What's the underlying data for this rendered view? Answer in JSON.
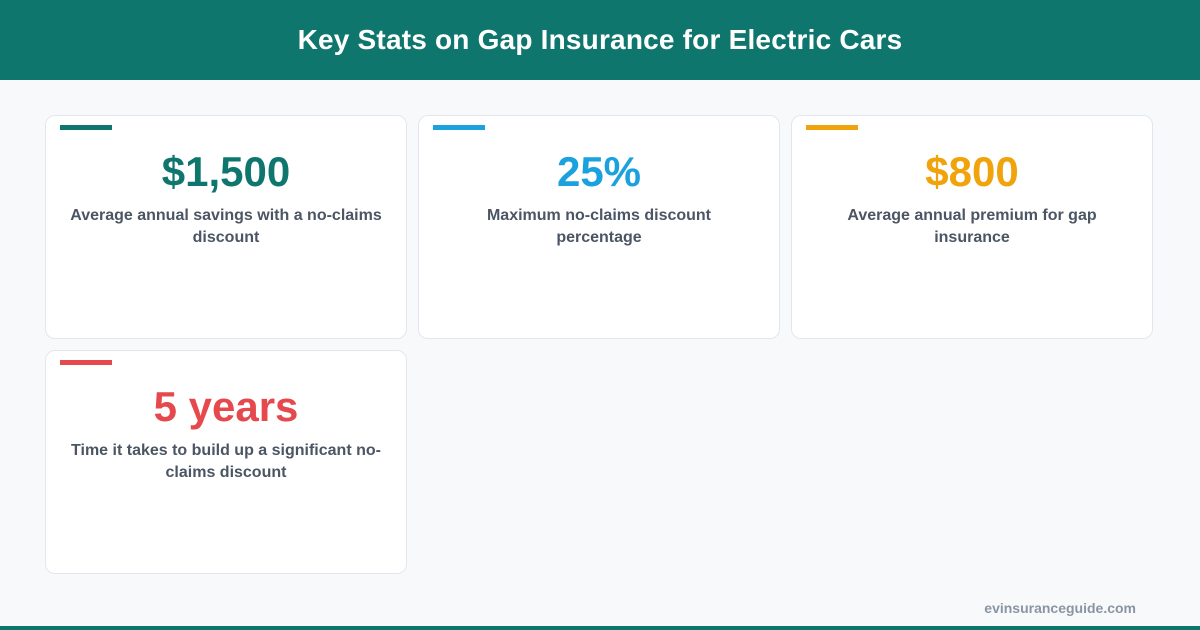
{
  "header": {
    "title": "Key Stats on Gap Insurance for Electric Cars"
  },
  "stats": [
    {
      "value": "$1,500",
      "description": "Average annual savings with a no-claims discount",
      "color": "#0f766e"
    },
    {
      "value": "25%",
      "description": "Maximum no-claims discount percentage",
      "color": "#1ba1dd"
    },
    {
      "value": "$800",
      "description": "Average annual premium for gap insurance",
      "color": "#f0a30a"
    },
    {
      "value": "5 years",
      "description": "Time it takes to build up a significant no-claims discount",
      "color": "#e5484d"
    }
  ],
  "footer": {
    "site": "evinsuranceguide.com"
  }
}
